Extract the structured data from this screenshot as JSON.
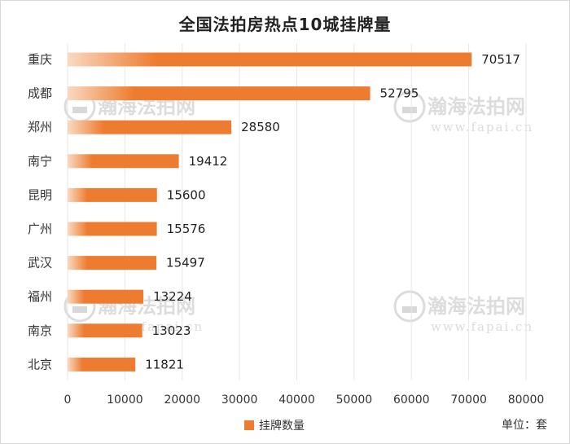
{
  "chart_data": {
    "type": "bar",
    "orientation": "horizontal",
    "title": "全国法拍房热点10城挂牌量",
    "categories": [
      "重庆",
      "成都",
      "郑州",
      "南宁",
      "昆明",
      "广州",
      "武汉",
      "福州",
      "南京",
      "北京"
    ],
    "series": [
      {
        "name": "挂牌数量",
        "values": [
          70517,
          52795,
          28580,
          19412,
          15600,
          15576,
          15497,
          13224,
          13023,
          11821
        ],
        "color": "#ee7c30",
        "gradient_start_color": "#f9d9c1"
      }
    ],
    "xlim": [
      0,
      80000
    ],
    "xticks": [
      0,
      10000,
      20000,
      30000,
      40000,
      50000,
      60000,
      70000,
      80000
    ],
    "grid": "vertical",
    "legend_position": "bottom",
    "unit_label": "单位：套"
  },
  "watermark": {
    "brand": "瀚海法拍网",
    "url": "www.fapai.cn"
  }
}
